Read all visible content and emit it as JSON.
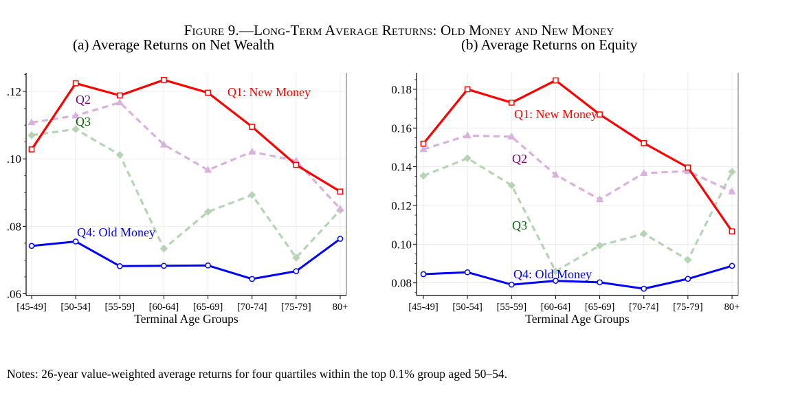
{
  "figure": {
    "title": "Figure 9.—Long-Term Average Returns: Old Money and New Money",
    "notes": "Notes: 26-year value-weighted average returns for four quartiles within the top 0.1% group aged 50–54."
  },
  "colors": {
    "q1": "#ff0000",
    "q2": "#dab0dc",
    "q3": "#b5d4b3",
    "q4": "#0000ff",
    "q2_label": "#800080",
    "q3_label": "#006400",
    "grid": "#ececec"
  },
  "chart_data": [
    {
      "type": "line",
      "title": "(a) Average Returns on Net Wealth",
      "xlabel": "Terminal Age Groups",
      "ylabel": "",
      "categories": [
        "[45-49]",
        "[50-54]",
        "[55-59]",
        "[60-64]",
        "[65-69]",
        "[70-74]",
        "[75-79]",
        "80+"
      ],
      "ylim": [
        0.0595,
        0.1255
      ],
      "yticks": [
        0.06,
        0.08,
        0.1,
        0.12
      ],
      "ytick_labels": [
        ".06",
        ".08",
        ".10",
        ".12"
      ],
      "grid": true,
      "series": [
        {
          "name": "Q1: New Money",
          "values": [
            0.1028,
            0.1224,
            0.1188,
            0.1234,
            0.1196,
            0.1095,
            0.0982,
            0.0903
          ]
        },
        {
          "name": "Q2",
          "values": [
            0.1108,
            0.1128,
            0.1167,
            0.1042,
            0.0967,
            0.1021,
            0.0994,
            0.0852
          ]
        },
        {
          "name": "Q3",
          "values": [
            0.107,
            0.1088,
            0.1012,
            0.0734,
            0.0843,
            0.0893,
            0.0707,
            0.0848
          ]
        },
        {
          "name": "Q4: Old Money",
          "values": [
            0.0742,
            0.0755,
            0.0682,
            0.0683,
            0.0684,
            0.0644,
            0.0667,
            0.0763
          ]
        }
      ]
    },
    {
      "type": "line",
      "title": "(b) Average Returns on Equity",
      "xlabel": "Terminal Age Groups",
      "ylabel": "",
      "categories": [
        "[45-49]",
        "[50-54]",
        "[55-59]",
        "[60-64]",
        "[65-69]",
        "[70-74]",
        "[75-79]",
        "80+"
      ],
      "ylim": [
        0.0735,
        0.1885
      ],
      "yticks": [
        0.08,
        0.1,
        0.12,
        0.14,
        0.16,
        0.18
      ],
      "ytick_labels": [
        "0.08",
        "0.10",
        "0.12",
        "0.14",
        "0.16",
        "0.18"
      ],
      "grid": true,
      "series": [
        {
          "name": "Q1: New Money",
          "values": [
            0.1519,
            0.18,
            0.1731,
            0.1846,
            0.167,
            0.1522,
            0.1396,
            0.1066
          ]
        },
        {
          "name": "Q2",
          "values": [
            0.149,
            0.1561,
            0.1555,
            0.1358,
            0.1231,
            0.1367,
            0.1377,
            0.1272
          ]
        },
        {
          "name": "Q3",
          "values": [
            0.1353,
            0.1444,
            0.1304,
            0.086,
            0.0993,
            0.1054,
            0.0919,
            0.1374
          ]
        },
        {
          "name": "Q4: Old Money",
          "values": [
            0.0845,
            0.0855,
            0.0791,
            0.0811,
            0.0803,
            0.077,
            0.0821,
            0.0888
          ]
        }
      ]
    }
  ]
}
